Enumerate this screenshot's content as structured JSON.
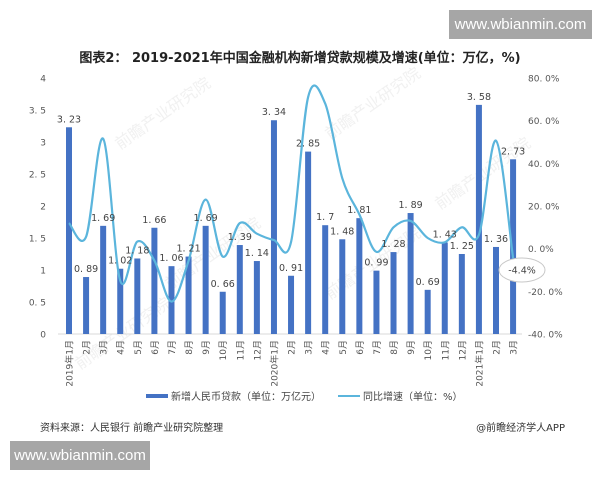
{
  "watermark": {
    "text": "www.wbianmin.com"
  },
  "title": "图表2： 2019-2021年中国金融机构新增贷款规模及增速(单位：万亿，%)",
  "legend": {
    "bar_label": "新增人民币贷款（单位：万亿元）",
    "line_label": "同比增速（单位：%）"
  },
  "source": "资料来源：人民银行 前瞻产业研究院整理",
  "credit": "@前瞻经济学人APP",
  "callout": "-4.4%",
  "colors": {
    "bar": "#4472c4",
    "line": "#5bb5dc"
  },
  "chart_data": {
    "type": "bar+line",
    "title": "图表2： 2019-2021年中国金融机构新增贷款规模及增速(单位：万亿，%)",
    "xlabel": "",
    "ylabel": "万亿元",
    "y2label": "%",
    "ylim": [
      0,
      4
    ],
    "y2lim": [
      -40,
      80
    ],
    "yticks": [
      "0",
      "0.5",
      "1",
      "1.5",
      "2",
      "2.5",
      "3",
      "3.5",
      "4"
    ],
    "y2ticks": [
      "-40.0%",
      "-20.0%",
      "0.0%",
      "20.0%",
      "40.0%",
      "60.0%",
      "80.0%"
    ],
    "categories": [
      "2019年1月",
      "2月",
      "3月",
      "4月",
      "5月",
      "6月",
      "7月",
      "8月",
      "9月",
      "10月",
      "11月",
      "12月",
      "2020年1月",
      "2月",
      "3月",
      "4月",
      "5月",
      "6月",
      "7月",
      "8月",
      "9月",
      "10月",
      "11月",
      "12月",
      "2021年1月",
      "2月",
      "3月"
    ],
    "series": [
      {
        "name": "新增人民币贷款（单位：万亿元）",
        "type": "bar",
        "axis": "left",
        "values": [
          3.23,
          0.89,
          1.69,
          1.02,
          1.18,
          1.66,
          1.06,
          1.21,
          1.69,
          0.66,
          1.39,
          1.14,
          3.34,
          0.91,
          2.85,
          1.7,
          1.48,
          1.81,
          0.99,
          1.28,
          1.89,
          0.69,
          1.43,
          1.25,
          3.58,
          1.36,
          2.73
        ]
      },
      {
        "name": "同比增速（单位：%）",
        "type": "line",
        "axis": "right",
        "values": [
          12,
          5.6,
          51.5,
          -15,
          3.3,
          -5.6,
          -24.8,
          -5.6,
          23,
          -3.7,
          12,
          7,
          4,
          3,
          71,
          68,
          33,
          16,
          -1.5,
          10,
          13,
          5,
          3,
          10,
          6.5,
          50.6,
          -4.4
        ]
      }
    ],
    "annotations": [
      "-4.4%"
    ],
    "legend_position": "bottom",
    "grid": false
  }
}
